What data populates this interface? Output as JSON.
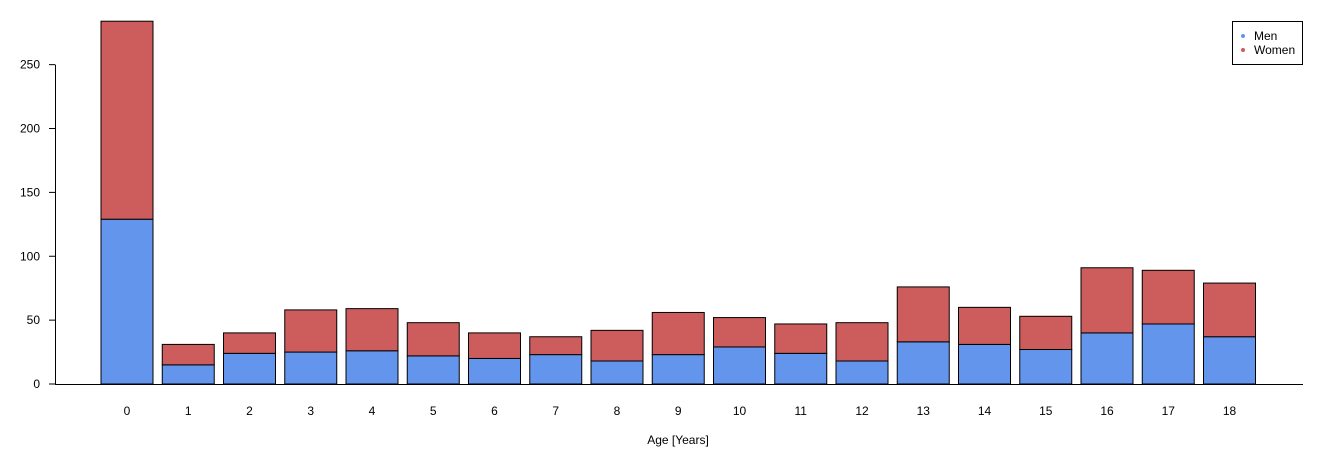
{
  "chart_data": {
    "type": "bar",
    "stacked": true,
    "title": "",
    "xlabel": "Age [Years]",
    "ylabel": "",
    "categories": [
      "0",
      "1",
      "2",
      "3",
      "4",
      "5",
      "6",
      "7",
      "8",
      "9",
      "10",
      "11",
      "12",
      "13",
      "14",
      "15",
      "16",
      "17",
      "18"
    ],
    "series": [
      {
        "name": "Men",
        "color": "#6495ED",
        "values": [
          129,
          15,
          24,
          25,
          26,
          22,
          20,
          23,
          18,
          23,
          29,
          24,
          18,
          33,
          31,
          27,
          40,
          47,
          37
        ]
      },
      {
        "name": "Women",
        "color": "#CD5C5C",
        "values": [
          155,
          16,
          16,
          33,
          33,
          26,
          20,
          14,
          24,
          33,
          23,
          23,
          30,
          43,
          29,
          26,
          51,
          42,
          42
        ]
      }
    ],
    "ylim": [
      0,
      283
    ],
    "yticks": [
      0,
      50,
      100,
      150,
      200,
      250
    ],
    "legend_position": "top-right",
    "grid": false
  }
}
